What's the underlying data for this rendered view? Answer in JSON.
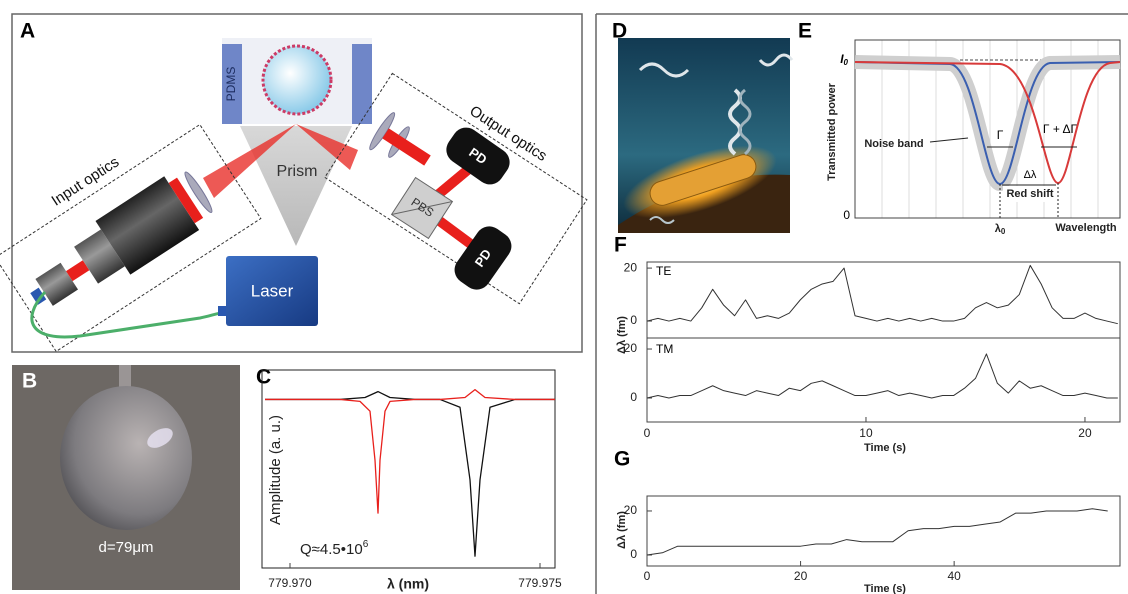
{
  "panels": {
    "A": {
      "label": "A",
      "pdms": "PDMS",
      "prism": "Prism",
      "input_optics": "Input optics",
      "output_optics": "Output optics",
      "pd_top": "PD",
      "pd_bottom": "PD",
      "pbs": "PBS",
      "laser": "Laser"
    },
    "B": {
      "label": "B",
      "diameter": "d=79μm"
    },
    "C": {
      "label": "C",
      "y_label": "Amplitude (a. u.)",
      "q_text": "Q≈4.5•10",
      "q_exponent": "6",
      "x_label": "λ (nm)",
      "xlim": [
        779.96944,
        779.9753
      ],
      "ylim": [
        0,
        1
      ],
      "xticks": [
        {
          "value": 779.97,
          "label": "779.970"
        },
        {
          "value": 779.975,
          "label": "779.975"
        }
      ],
      "series": [
        {
          "color": "#111111",
          "x": [
            779.9695,
            779.971,
            779.9715,
            779.97176,
            779.972,
            779.9725,
            779.973,
            779.9734,
            779.9736,
            779.9737,
            779.9738,
            779.974,
            779.9745,
            779.9753
          ],
          "values": [
            0.86,
            0.86,
            0.87,
            0.9,
            0.87,
            0.86,
            0.86,
            0.82,
            0.45,
            0.06,
            0.45,
            0.82,
            0.86,
            0.86
          ]
        },
        {
          "color": "#e8201c",
          "x": [
            779.9695,
            779.971,
            779.9714,
            779.9716,
            779.9717,
            779.97176,
            779.9718,
            779.9719,
            779.972,
            779.9725,
            779.973,
            779.9735,
            779.9737,
            779.9739,
            779.9745,
            779.9753
          ],
          "values": [
            0.86,
            0.86,
            0.85,
            0.8,
            0.55,
            0.28,
            0.55,
            0.8,
            0.85,
            0.86,
            0.86,
            0.87,
            0.91,
            0.87,
            0.86,
            0.86
          ]
        }
      ]
    },
    "D": {
      "label": "D"
    },
    "E": {
      "label": "E",
      "i0": "I",
      "i0_sub": "0",
      "zero": "0",
      "y_label": "Transmitted power",
      "noise_band": "Noise band",
      "gamma": "Γ",
      "gamma_delta": "Γ + ΔΓ",
      "delta_lambda": "Δλ",
      "red_shift": "Red shift",
      "lambda0": "λ",
      "lambda0_sub": "0",
      "x_label": "Wavelength"
    },
    "F": {
      "label": "F",
      "x_label": "Time (s)",
      "y_label": "Δλ (fm)",
      "xlim": [
        0,
        21.6
      ],
      "xticks": [
        0,
        10,
        20
      ],
      "x": [
        0,
        0.5,
        1,
        1.5,
        2,
        2.5,
        3,
        3.5,
        4,
        4.5,
        5,
        5.5,
        6,
        6.5,
        7,
        7.5,
        8,
        8.5,
        9,
        9.5,
        10,
        10.5,
        11,
        11.5,
        12,
        12.5,
        13,
        13.5,
        14,
        14.5,
        15,
        15.5,
        16,
        16.5,
        17,
        17.5,
        18,
        18.5,
        19,
        19.5,
        20,
        20.5,
        21,
        21.5
      ],
      "TE": {
        "label": "TE",
        "color": "#333333",
        "ylim": [
          -6.4,
          22.3
        ],
        "yticks": [
          0,
          20
        ],
        "values": [
          0,
          1,
          0,
          1,
          0,
          5,
          12,
          6,
          2,
          8,
          1,
          2,
          1,
          3,
          8,
          12,
          14,
          15,
          20,
          2,
          1,
          0,
          1,
          0,
          1,
          0,
          1,
          0,
          0,
          1,
          5,
          7,
          5,
          6,
          10,
          21,
          14,
          5,
          1,
          1,
          3,
          1,
          0,
          -1
        ]
      },
      "TM": {
        "label": "TM",
        "color": "#333333",
        "ylim": [
          -9.8,
          24.5
        ],
        "yticks": [
          0,
          20
        ],
        "values": [
          0,
          1,
          0,
          1,
          1,
          3,
          5,
          3,
          2,
          1,
          3,
          2,
          1,
          4,
          3,
          6,
          7,
          5,
          3,
          1,
          1,
          2,
          3,
          1,
          2,
          1,
          0,
          1,
          1,
          4,
          8,
          18,
          6,
          2,
          7,
          4,
          5,
          3,
          1,
          1,
          2,
          1,
          0,
          0
        ]
      }
    },
    "G": {
      "label": "G",
      "x_label": "Time (s)",
      "y_label": "Δλ (fm)",
      "xlim": [
        0,
        61.6
      ],
      "xticks": [
        0,
        20,
        40
      ],
      "ylim": [
        -5,
        26.8
      ],
      "yticks": [
        0,
        20
      ],
      "color": "#333333",
      "x": [
        0,
        2,
        4,
        6,
        8,
        10,
        12,
        14,
        16,
        18,
        20,
        22,
        24,
        26,
        28,
        30,
        32,
        34,
        36,
        38,
        40,
        42,
        44,
        46,
        48,
        50,
        52,
        54,
        56,
        58,
        60
      ],
      "values": [
        0,
        1,
        4,
        4,
        4,
        4,
        4,
        4,
        4,
        4,
        4,
        5,
        5,
        7,
        6,
        6,
        6,
        11,
        12,
        12,
        13,
        13,
        14,
        15,
        19,
        19,
        20,
        20,
        20,
        21,
        20
      ]
    }
  }
}
